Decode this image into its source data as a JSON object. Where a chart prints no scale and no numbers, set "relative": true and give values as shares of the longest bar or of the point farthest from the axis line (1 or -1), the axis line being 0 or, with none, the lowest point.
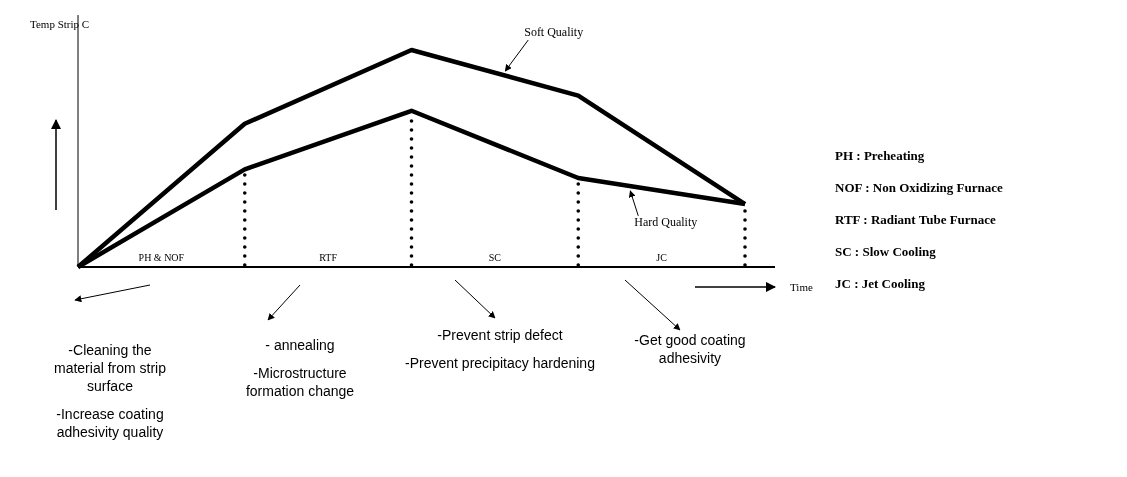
{
  "chart_data": {
    "type": "line",
    "relative": true,
    "categories": [
      null,
      null,
      null,
      null,
      null
    ],
    "xlabel": "Time",
    "ylabel": "Temp Strip C",
    "series": [
      {
        "name": "Soft Quality",
        "color": "#000000",
        "values": [
          0,
          0.66,
          1,
          0.79,
          0.29
        ]
      },
      {
        "name": "Hard Quality",
        "color": "#000000",
        "values": [
          0,
          0.45,
          0.72,
          0.41,
          0.29
        ]
      }
    ],
    "line_style": "solid",
    "marker": "none",
    "grid": false,
    "annotations": [
      "PH & NOF",
      "RTF",
      "SC",
      "JC",
      "PH : Preheating",
      "NOF : Non Oxidizing Furnace",
      "RTF : Radiant Tube Furnace",
      "SC : Slow Cooling",
      "JC : Jet Cooling",
      "-Cleaning the material from strip surface",
      "-Increase coating adhesivity quality",
      "- annealing",
      "-Microstructure formation change",
      "-Prevent strip defect",
      "-Prevent precipitacy hardening",
      "-Get good coating adhesivity"
    ]
  }
}
